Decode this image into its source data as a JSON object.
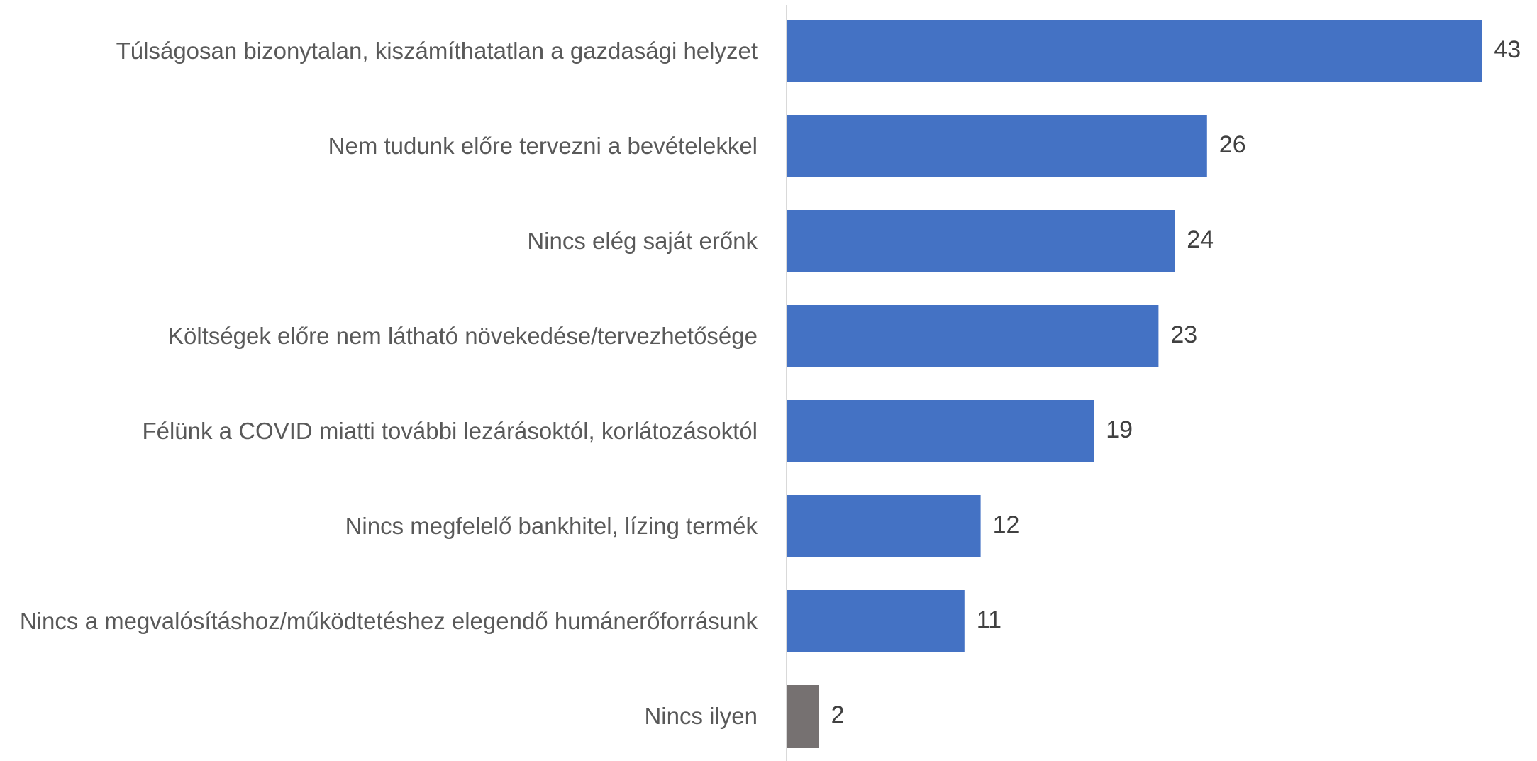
{
  "chart_data": {
    "type": "barh",
    "categories": [
      "Túlságosan bizonytalan, kiszámíthatatlan a gazdasági helyzet",
      "Nem tudunk előre tervezni a bevételekkel",
      "Nincs elég saját erőnk",
      "Költségek előre nem látható növekedése/tervezhetősége",
      "Félünk a COVID miatti további lezárásoktól, korlátozásoktól",
      "Nincs megfelelő bankhitel, lízing termék",
      "Nincs a megvalósításhoz/működtetéshez elegendő humánerőforrásunk",
      "Nincs ilyen"
    ],
    "values": [
      43,
      26,
      24,
      23,
      19,
      12,
      11,
      2
    ],
    "colors": [
      "#4472c4",
      "#4472c4",
      "#4472c4",
      "#4472c4",
      "#4472c4",
      "#4472c4",
      "#4472c4",
      "#767171"
    ]
  }
}
